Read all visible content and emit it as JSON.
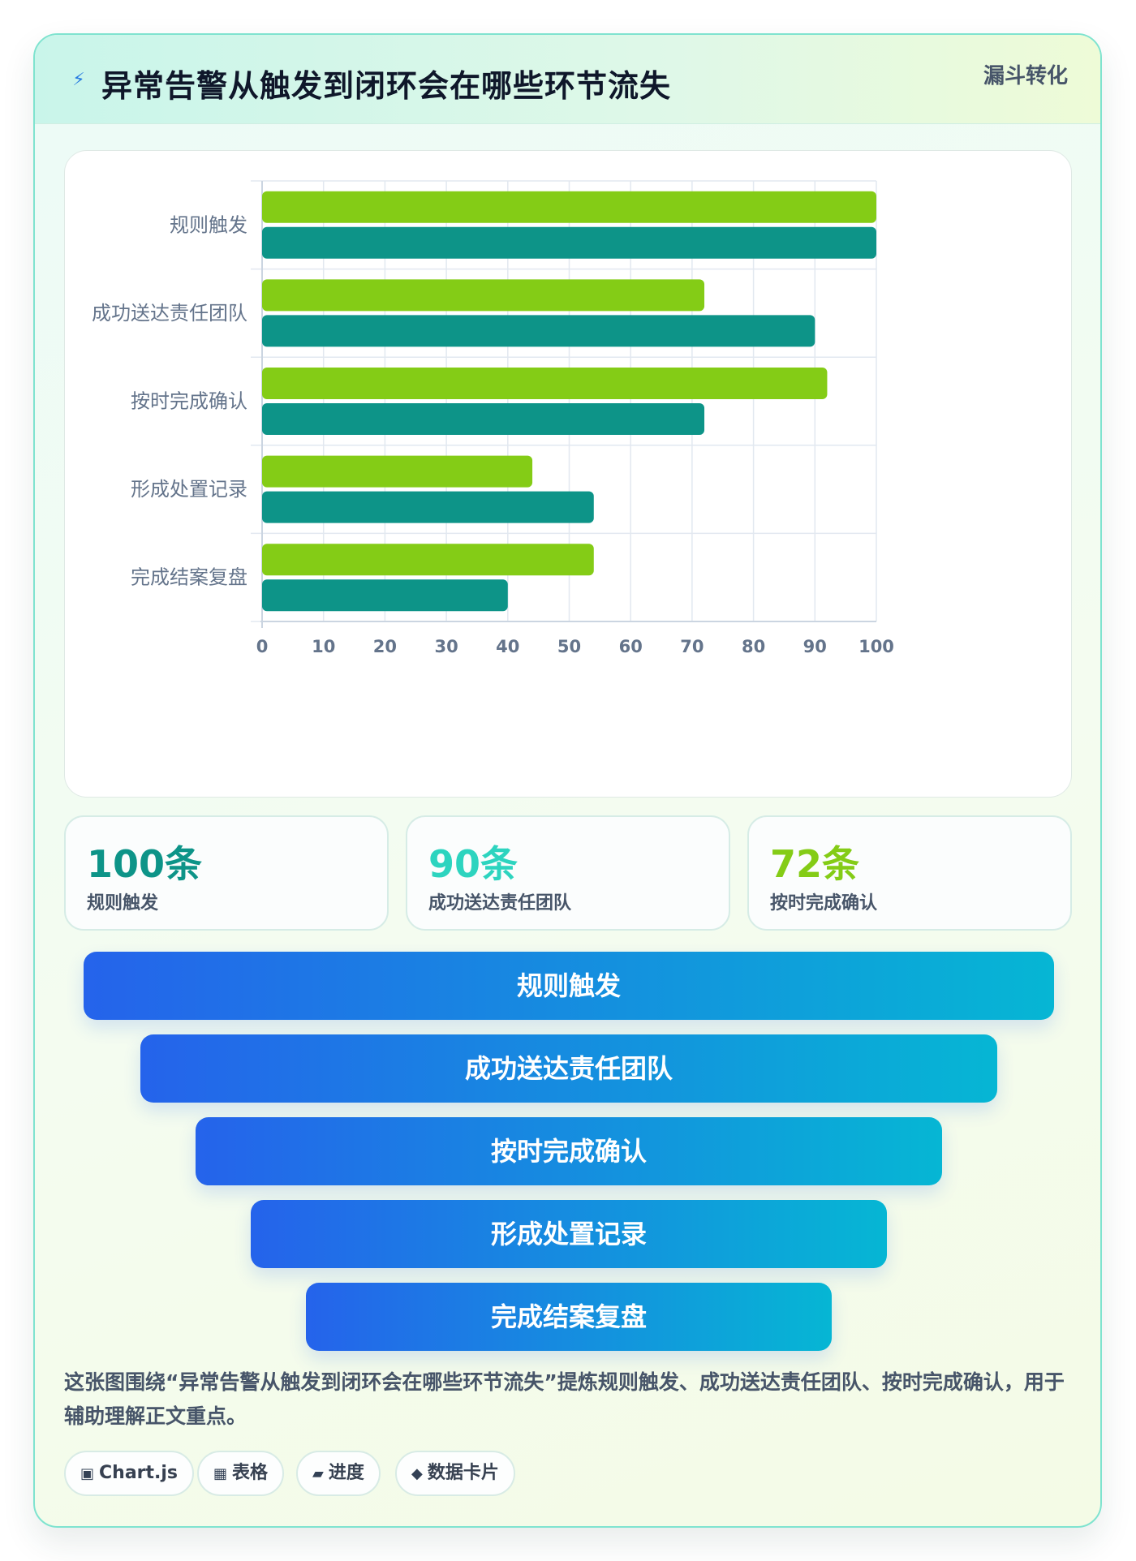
{
  "header": {
    "icon": "lightning-icon",
    "title": "异常告警从触发到闭环会在哪些环节流失",
    "badge": "漏斗转化"
  },
  "colors": {
    "series_a": "#84cc16",
    "series_b": "#0d9488",
    "funnel_start": "#2563eb",
    "funnel_end": "#06b6d4"
  },
  "chart_data": {
    "type": "bar",
    "orientation": "horizontal",
    "categories": [
      "规则触发",
      "成功送达责任团队",
      "按时完成确认",
      "形成处置记录",
      "完成结案复盘"
    ],
    "series": [
      {
        "values": [
          100,
          72,
          92,
          44,
          54
        ]
      },
      {
        "values": [
          100,
          90,
          72,
          54,
          40
        ]
      }
    ],
    "xlim": [
      0,
      100
    ],
    "xticks": [
      "0",
      "10",
      "20",
      "30",
      "40",
      "50",
      "60",
      "70",
      "80",
      "90",
      "100"
    ],
    "grid": true,
    "legend": "none"
  },
  "stats": [
    {
      "value": "100条",
      "label": "规则触发",
      "color": "#0d9488"
    },
    {
      "value": "90条",
      "label": "成功送达责任团队",
      "color": "#2dd4bf"
    },
    {
      "value": "72条",
      "label": "按时完成确认",
      "color": "#84cc16"
    }
  ],
  "funnel": [
    "规则触发",
    "成功送达责任团队",
    "按时完成确认",
    "形成处置记录",
    "完成结案复盘"
  ],
  "note": "这张图围绕“异常告警从触发到闭环会在哪些环节流失”提炼规则触发、成功送达责任团队、按时完成确认，用于辅助理解正文重点。",
  "tags": [
    {
      "icon": "▣",
      "label": "Chart.js"
    },
    {
      "icon": "▦",
      "label": "表格"
    },
    {
      "icon": "▰",
      "label": "进度"
    },
    {
      "icon": "◆",
      "label": "数据卡片"
    }
  ]
}
